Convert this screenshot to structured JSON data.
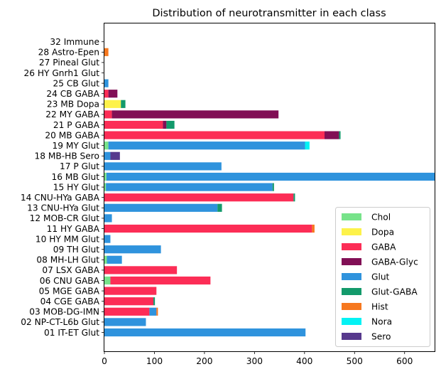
{
  "chart_data": {
    "type": "bar",
    "orientation": "horizontal",
    "stacked": true,
    "title": "Distribution of neurotransmitter in each class",
    "xlabel": "",
    "ylabel": "",
    "xlim": [
      0,
      660
    ],
    "xticks": [
      0,
      100,
      200,
      300,
      400,
      500,
      600
    ],
    "grid": false,
    "legend_position": "lower right",
    "categories": [
      "01 IT-ET Glut",
      "02 NP-CT-L6b Glut",
      "03 MOB-DG-IMN",
      "04 CGE GABA",
      "05 MGE GABA",
      "06 CNU GABA",
      "07 LSX GABA",
      "08 MH-LH Glut",
      "09 TH Glut",
      "10 HY MM Glut",
      "11 HY GABA",
      "12 MOB-CR Glut",
      "13 CNU-HYa Glut",
      "14 CNU-HYa GABA",
      "15 HY Glut",
      "16 MB Glut",
      "17 P Glut",
      "18 MB-HB Sero",
      "19 MY Glut",
      "20 MB GABA",
      "21 P GABA",
      "22 MY GABA",
      "23 MB Dopa",
      "24 CB GABA",
      "25 CB Glut",
      "26 HY Gnrh1 Glut",
      "27 Pineal Glut",
      "28 Astro-Epen",
      "32 Immune"
    ],
    "series": [
      {
        "name": "Chol",
        "color": "#77e38a",
        "values": [
          0,
          0,
          0,
          0,
          0,
          12,
          0,
          5,
          0,
          0,
          0,
          0,
          0,
          0,
          3,
          4,
          0,
          0,
          8,
          0,
          0,
          0,
          0,
          0,
          0,
          0,
          0,
          0,
          0
        ]
      },
      {
        "name": "Dopa",
        "color": "#fdf24a",
        "values": [
          0,
          0,
          0,
          0,
          0,
          0,
          0,
          0,
          0,
          0,
          0,
          0,
          0,
          0,
          0,
          0,
          0,
          0,
          0,
          0,
          0,
          0,
          33,
          0,
          0,
          0,
          0,
          0,
          0
        ]
      },
      {
        "name": "GABA",
        "color": "#fc2d56",
        "values": [
          0,
          0,
          90,
          98,
          104,
          200,
          145,
          0,
          0,
          0,
          415,
          0,
          0,
          378,
          0,
          0,
          0,
          0,
          0,
          440,
          117,
          15,
          0,
          8,
          0,
          0,
          0,
          0,
          0
        ]
      },
      {
        "name": "GABA-Glyc",
        "color": "#810f55",
        "values": [
          0,
          0,
          0,
          0,
          0,
          0,
          0,
          0,
          0,
          0,
          0,
          0,
          0,
          0,
          0,
          0,
          0,
          0,
          0,
          29,
          7,
          333,
          0,
          18,
          0,
          0,
          0,
          0,
          0
        ]
      },
      {
        "name": "Glut",
        "color": "#2f93dd",
        "values": [
          402,
          83,
          14,
          0,
          0,
          0,
          0,
          30,
          113,
          12,
          0,
          15,
          226,
          0,
          333,
          656,
          234,
          12,
          393,
          0,
          0,
          0,
          0,
          0,
          8,
          0,
          0,
          0,
          0
        ]
      },
      {
        "name": "Glut-GABA",
        "color": "#139a6b",
        "values": [
          0,
          0,
          0,
          3,
          0,
          0,
          0,
          0,
          0,
          0,
          0,
          0,
          9,
          3,
          3,
          0,
          0,
          0,
          0,
          3,
          16,
          0,
          9,
          0,
          0,
          0,
          0,
          0,
          0
        ]
      },
      {
        "name": "Hist",
        "color": "#f6781f",
        "values": [
          0,
          0,
          3,
          0,
          0,
          0,
          0,
          0,
          0,
          0,
          5,
          0,
          0,
          0,
          0,
          0,
          0,
          0,
          0,
          0,
          0,
          0,
          0,
          0,
          0,
          0,
          0,
          8,
          0
        ]
      },
      {
        "name": "Nora",
        "color": "#04f2f4",
        "values": [
          0,
          0,
          0,
          0,
          0,
          0,
          0,
          0,
          0,
          0,
          0,
          0,
          0,
          0,
          0,
          0,
          0,
          0,
          9,
          0,
          0,
          0,
          0,
          0,
          0,
          0,
          0,
          0,
          0
        ]
      },
      {
        "name": "Sero",
        "color": "#57398d",
        "values": [
          0,
          0,
          0,
          0,
          0,
          0,
          0,
          0,
          0,
          0,
          0,
          0,
          0,
          0,
          0,
          0,
          0,
          19,
          0,
          0,
          0,
          0,
          0,
          0,
          0,
          0,
          0,
          0,
          0
        ]
      }
    ]
  }
}
